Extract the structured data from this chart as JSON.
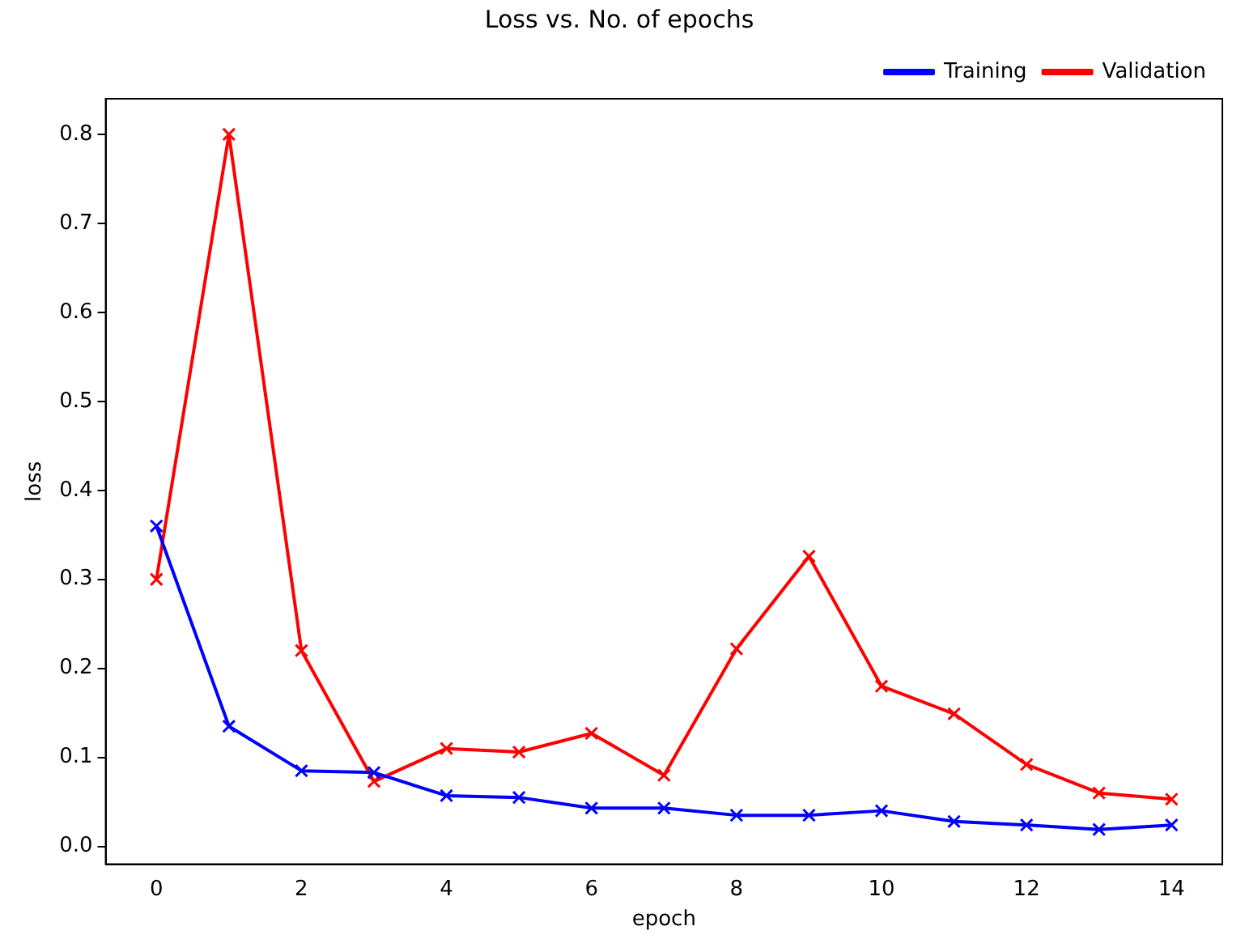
{
  "chart_data": {
    "type": "line",
    "title": "Loss vs. No. of epochs",
    "xlabel": "epoch",
    "ylabel": "loss",
    "x": [
      0,
      1,
      2,
      3,
      4,
      5,
      6,
      7,
      8,
      9,
      10,
      11,
      12,
      13,
      14
    ],
    "series": [
      {
        "name": "Training",
        "color": "#0000ff",
        "values": [
          0.36,
          0.135,
          0.085,
          0.083,
          0.057,
          0.055,
          0.043,
          0.043,
          0.035,
          0.035,
          0.04,
          0.028,
          0.024,
          0.019,
          0.024
        ]
      },
      {
        "name": "Validation",
        "color": "#ff0000",
        "values": [
          0.3,
          0.8,
          0.22,
          0.073,
          0.11,
          0.106,
          0.127,
          0.08,
          0.222,
          0.326,
          0.18,
          0.149,
          0.092,
          0.06,
          0.053
        ]
      }
    ],
    "xlim": [
      -0.7,
      14.7
    ],
    "xticks": [
      0,
      2,
      4,
      6,
      8,
      10,
      12,
      14
    ],
    "ylim": [
      -0.02,
      0.84
    ],
    "yticks": [
      {
        "value": 0,
        "label": "0.0"
      },
      0.1,
      0.2,
      0.3,
      0.4,
      0.5,
      0.6,
      0.7,
      0.8
    ],
    "marker": "cross",
    "line_style": "solid",
    "legend": "top right",
    "grid": false
  }
}
